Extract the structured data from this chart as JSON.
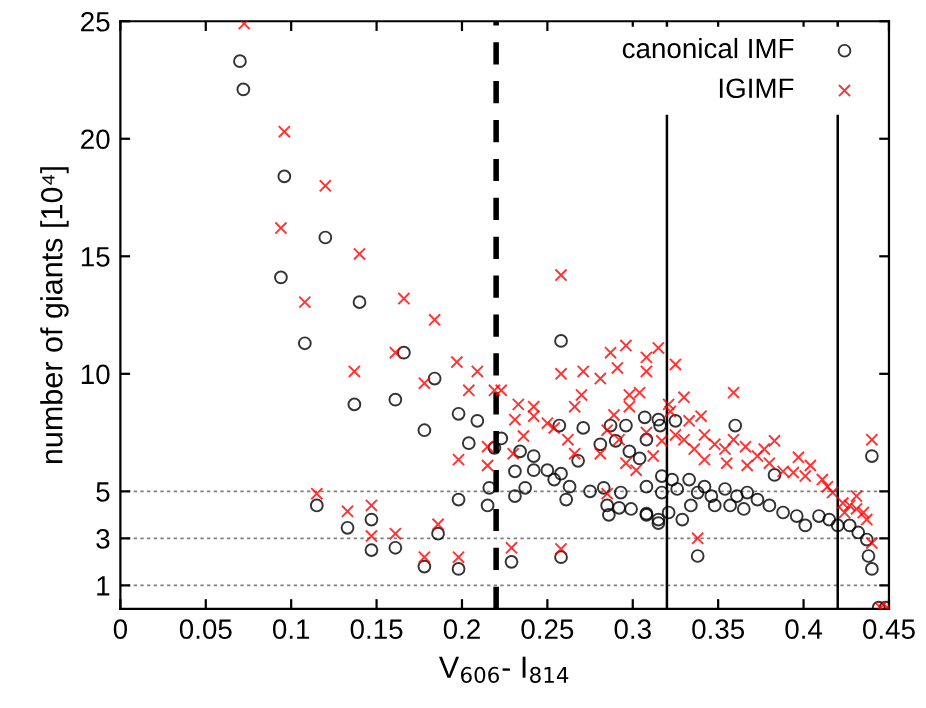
{
  "chart_data": {
    "type": "scatter",
    "xlabel": "V$_{606}$- I$_{814}$",
    "ylabel": "number of giants [10⁴]",
    "xlim": [
      0,
      0.45
    ],
    "ylim": [
      0,
      25
    ],
    "xticks": [
      0,
      0.05,
      0.1,
      0.15,
      0.2,
      0.25,
      0.3,
      0.35,
      0.4,
      0.45
    ],
    "yticks": [
      1,
      3,
      5,
      10,
      15,
      20,
      25
    ],
    "grid": false,
    "legend": "top right",
    "ref_lines": [
      {
        "axis": "y",
        "value": 1,
        "color": "#808080",
        "line_style": "dotted"
      },
      {
        "axis": "y",
        "value": 3,
        "color": "#808080",
        "line_style": "dotted"
      },
      {
        "axis": "y",
        "value": 5,
        "color": "#808080",
        "line_style": "dotted"
      },
      {
        "axis": "x",
        "value": 0.22,
        "color": "#000000",
        "line_style": "dashed"
      },
      {
        "axis": "x",
        "value": 0.32,
        "color": "#000000",
        "line_style": "solid"
      },
      {
        "axis": "x",
        "value": 0.42,
        "color": "#000000",
        "line_style": "solid"
      }
    ],
    "series": [
      {
        "name": "canonical IMF",
        "color": "#000000",
        "marker": "circle",
        "x": [
          0.07,
          0.072,
          0.096,
          0.12,
          0.094,
          0.14,
          0.108,
          0.137,
          0.115,
          0.133,
          0.147,
          0.147,
          0.166,
          0.184,
          0.161,
          0.178,
          0.198,
          0.209,
          0.204,
          0.258,
          0.198,
          0.216,
          0.215,
          0.219,
          0.223,
          0.234,
          0.231,
          0.242,
          0.242,
          0.237,
          0.231,
          0.25,
          0.254,
          0.258,
          0.257,
          0.263,
          0.261,
          0.268,
          0.271,
          0.275,
          0.281,
          0.283,
          0.287,
          0.285,
          0.286,
          0.29,
          0.292,
          0.293,
          0.296,
          0.298,
          0.299,
          0.304,
          0.307,
          0.308,
          0.308,
          0.308,
          0.315,
          0.316,
          0.317,
          0.161,
          0.186,
          0.178,
          0.198,
          0.229,
          0.258,
          0.315,
          0.325,
          0.36,
          0.317,
          0.323,
          0.326,
          0.333,
          0.338,
          0.342,
          0.346,
          0.354,
          0.361,
          0.367,
          0.373,
          0.38,
          0.383,
          0.388,
          0.396,
          0.401,
          0.409,
          0.415,
          0.42,
          0.427,
          0.432,
          0.437,
          0.438,
          0.44,
          0.44,
          0.338,
          0.329,
          0.315,
          0.321,
          0.308,
          0.334,
          0.348,
          0.357,
          0.365,
          0.444,
          0.448
        ],
        "values": [
          23.3,
          22.1,
          18.4,
          15.8,
          14.1,
          13.05,
          11.3,
          8.7,
          4.4,
          3.45,
          3.8,
          2.5,
          10.9,
          9.8,
          8.9,
          7.6,
          8.3,
          8.0,
          7.05,
          11.4,
          4.65,
          5.15,
          4.4,
          6.85,
          7.25,
          6.7,
          5.85,
          6.5,
          5.9,
          5.15,
          4.8,
          5.9,
          5.5,
          5.75,
          7.8,
          5.2,
          4.65,
          6.3,
          7.7,
          5.0,
          7.0,
          5.15,
          7.8,
          4.4,
          4.0,
          7.15,
          4.3,
          4.95,
          7.8,
          6.7,
          4.25,
          6.4,
          8.15,
          7.2,
          5.2,
          4.0,
          3.8,
          7.8,
          4.95,
          2.6,
          3.2,
          1.8,
          1.7,
          2.0,
          2.2,
          8.05,
          8.0,
          7.8,
          5.65,
          5.5,
          5.1,
          5.5,
          4.95,
          5.2,
          4.8,
          5.1,
          4.8,
          4.95,
          4.65,
          4.4,
          5.7,
          4.1,
          3.95,
          3.55,
          3.95,
          3.8,
          3.55,
          3.55,
          3.25,
          2.95,
          2.25,
          6.5,
          1.7,
          2.25,
          3.8,
          3.65,
          4.1,
          4.05,
          4.4,
          4.4,
          4.4,
          4.25,
          0.05,
          0.05
        ]
      },
      {
        "name": "IGIMF",
        "color": "#ff0000",
        "marker": "cross",
        "x": [
          0.0725,
          0.096,
          0.12,
          0.094,
          0.14,
          0.108,
          0.137,
          0.115,
          0.133,
          0.147,
          0.147,
          0.166,
          0.184,
          0.161,
          0.197,
          0.209,
          0.178,
          0.204,
          0.219,
          0.223,
          0.258,
          0.258,
          0.271,
          0.233,
          0.242,
          0.266,
          0.27,
          0.231,
          0.242,
          0.236,
          0.25,
          0.254,
          0.262,
          0.198,
          0.23,
          0.215,
          0.215,
          0.161,
          0.186,
          0.178,
          0.198,
          0.229,
          0.258,
          0.281,
          0.287,
          0.296,
          0.291,
          0.308,
          0.308,
          0.298,
          0.304,
          0.289,
          0.298,
          0.285,
          0.292,
          0.266,
          0.281,
          0.296,
          0.302,
          0.312,
          0.285,
          0.315,
          0.325,
          0.33,
          0.321,
          0.322,
          0.308,
          0.317,
          0.325,
          0.333,
          0.34,
          0.342,
          0.348,
          0.354,
          0.359,
          0.359,
          0.366,
          0.367,
          0.373,
          0.383,
          0.38,
          0.388,
          0.397,
          0.401,
          0.404,
          0.411,
          0.414,
          0.417,
          0.423,
          0.427,
          0.431,
          0.435,
          0.437,
          0.44,
          0.44,
          0.338,
          0.342,
          0.336,
          0.33,
          0.431,
          0.424,
          0.355,
          0.377,
          0.394,
          0.445,
          0.449
        ],
        "values": [
          24.9,
          20.3,
          18.0,
          16.2,
          15.1,
          13.05,
          10.1,
          4.9,
          4.15,
          4.4,
          3.1,
          13.2,
          12.3,
          10.9,
          10.5,
          10.1,
          9.6,
          9.3,
          9.3,
          9.3,
          14.2,
          10.0,
          10.1,
          8.7,
          8.6,
          8.6,
          9.1,
          8.05,
          8.2,
          7.35,
          7.9,
          7.7,
          7.2,
          6.35,
          6.6,
          6.9,
          6.1,
          3.2,
          3.6,
          2.2,
          2.2,
          2.6,
          2.55,
          9.8,
          10.9,
          11.2,
          10.25,
          10.7,
          10.1,
          9.1,
          9.2,
          8.25,
          8.6,
          7.6,
          7.2,
          6.6,
          6.6,
          6.2,
          5.9,
          6.5,
          4.9,
          11.1,
          10.4,
          9.0,
          8.7,
          8.4,
          7.5,
          7.15,
          7.4,
          8.0,
          8.2,
          7.4,
          7.0,
          6.8,
          9.2,
          7.2,
          6.9,
          6.1,
          6.5,
          7.15,
          6.2,
          5.85,
          6.45,
          5.65,
          6.1,
          5.5,
          5.2,
          4.95,
          4.5,
          4.4,
          4.25,
          4.1,
          3.8,
          7.2,
          2.8,
          3.0,
          6.35,
          6.8,
          7.2,
          4.8,
          4.1,
          6.2,
          6.8,
          5.8,
          0.05,
          0.05
        ]
      }
    ]
  }
}
